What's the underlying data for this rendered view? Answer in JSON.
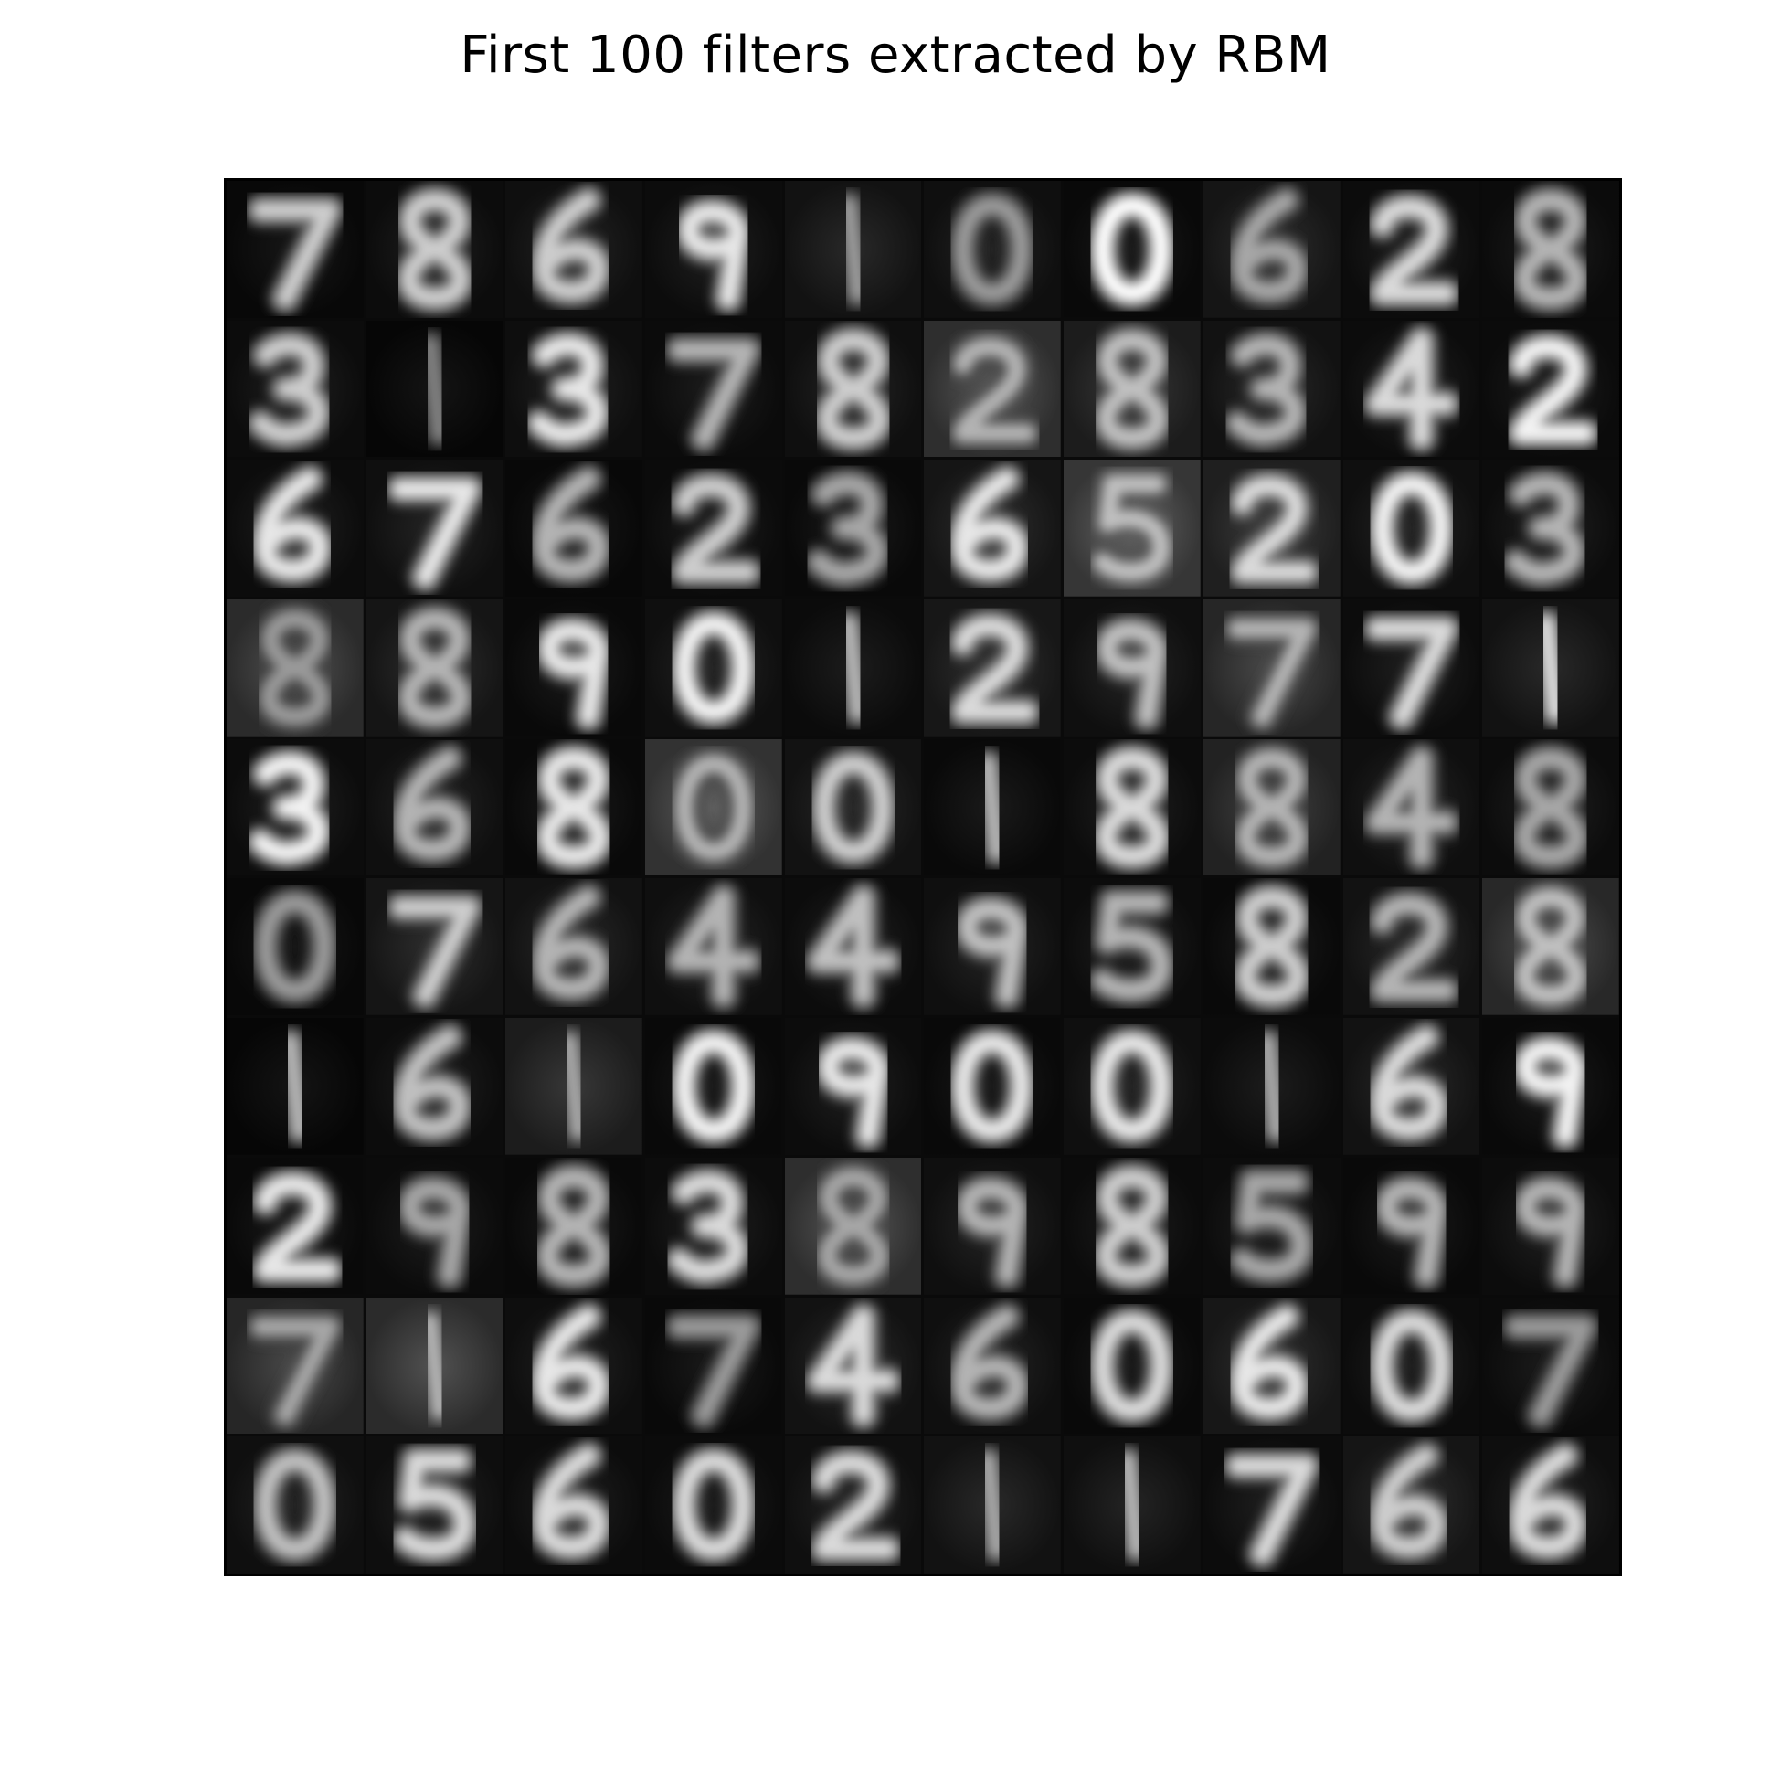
{
  "figure": {
    "title": "First 100 filters extracted by RBM"
  },
  "filters": {
    "rows": 10,
    "cols": 10,
    "digits": [
      "7",
      "8",
      "6",
      "9",
      "1",
      "0",
      "0",
      "6",
      "2",
      "8",
      "3",
      "1",
      "3",
      "7",
      "8",
      "2",
      "8",
      "3",
      "4",
      "2",
      "6",
      "7",
      "6",
      "2",
      "3",
      "6",
      "5",
      "2",
      "0",
      "3",
      "8",
      "8",
      "9",
      "0",
      "1",
      "2",
      "9",
      "7",
      "7",
      "1",
      "3",
      "6",
      "8",
      "0",
      "0",
      "1",
      "8",
      "8",
      "4",
      "8",
      "0",
      "7",
      "6",
      "4",
      "4",
      "9",
      "5",
      "8",
      "2",
      "8",
      "1",
      "6",
      "1",
      "0",
      "9",
      "0",
      "0",
      "1",
      "6",
      "9",
      "2",
      "9",
      "8",
      "3",
      "8",
      "9",
      "8",
      "5",
      "9",
      "9",
      "7",
      "1",
      "6",
      "7",
      "4",
      "6",
      "0",
      "6",
      "0",
      "7",
      "0",
      "5",
      "6",
      "0",
      "2",
      "1",
      "1",
      "7",
      "6",
      "6"
    ],
    "background_levels": [
      0.05,
      0.08,
      0.1,
      0.08,
      0.12,
      0.1,
      0.06,
      0.14,
      0.08,
      0.07,
      0.08,
      0.04,
      0.09,
      0.07,
      0.1,
      0.3,
      0.18,
      0.12,
      0.08,
      0.07,
      0.08,
      0.1,
      0.05,
      0.07,
      0.06,
      0.14,
      0.35,
      0.2,
      0.1,
      0.08,
      0.28,
      0.14,
      0.06,
      0.1,
      0.07,
      0.15,
      0.1,
      0.25,
      0.08,
      0.12,
      0.08,
      0.1,
      0.06,
      0.33,
      0.12,
      0.06,
      0.08,
      0.22,
      0.1,
      0.08,
      0.05,
      0.14,
      0.12,
      0.1,
      0.08,
      0.1,
      0.08,
      0.06,
      0.12,
      0.26,
      0.04,
      0.08,
      0.18,
      0.06,
      0.08,
      0.06,
      0.1,
      0.07,
      0.12,
      0.06,
      0.06,
      0.07,
      0.06,
      0.08,
      0.3,
      0.1,
      0.07,
      0.08,
      0.06,
      0.08,
      0.25,
      0.28,
      0.09,
      0.06,
      0.12,
      0.1,
      0.06,
      0.15,
      0.08,
      0.07,
      0.1,
      0.09,
      0.08,
      0.07,
      0.1,
      0.12,
      0.1,
      0.08,
      0.14,
      0.09
    ],
    "stroke_brightness": [
      0.8,
      0.8,
      0.8,
      0.9,
      0.6,
      0.6,
      1.0,
      0.65,
      0.85,
      0.7,
      0.8,
      0.5,
      0.9,
      0.7,
      0.8,
      0.7,
      0.75,
      0.7,
      0.85,
      0.95,
      0.9,
      0.9,
      0.7,
      0.8,
      0.65,
      0.9,
      0.75,
      0.85,
      0.95,
      0.7,
      0.6,
      0.7,
      0.9,
      0.95,
      0.7,
      0.85,
      0.75,
      0.7,
      0.85,
      0.85,
      0.95,
      0.7,
      0.9,
      0.7,
      0.8,
      0.7,
      0.85,
      0.7,
      0.7,
      0.65,
      0.6,
      0.8,
      0.7,
      0.7,
      0.75,
      0.75,
      0.7,
      0.8,
      0.7,
      0.75,
      0.7,
      0.75,
      0.65,
      0.95,
      0.9,
      0.9,
      0.9,
      0.65,
      0.85,
      0.95,
      0.9,
      0.65,
      0.7,
      0.85,
      0.65,
      0.7,
      0.8,
      0.65,
      0.7,
      0.7,
      0.65,
      0.7,
      0.9,
      0.6,
      0.85,
      0.7,
      0.85,
      0.9,
      0.85,
      0.6,
      0.75,
      0.85,
      0.85,
      0.85,
      0.85,
      0.65,
      0.7,
      0.85,
      0.8,
      0.85
    ],
    "colors": {
      "frame": "#000000",
      "gutter": "#0a0a0a"
    }
  }
}
